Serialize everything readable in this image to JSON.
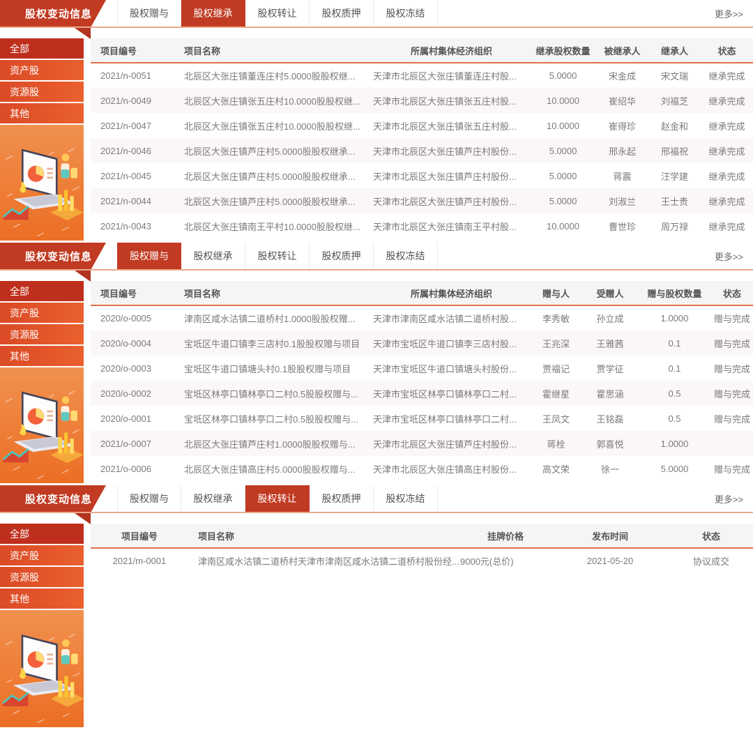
{
  "banner_title": "股权变动信息",
  "more_label": "更多>>",
  "tabs": [
    "股权赠与",
    "股权继承",
    "股权转让",
    "股权质押",
    "股权冻结"
  ],
  "sidebar_items": [
    "全部",
    "资产股",
    "资源股",
    "其他"
  ],
  "colors": {
    "banner_red": "#c13a22",
    "active_tab_red": "#c13a22",
    "sidebar_active_red": "#bf2f1d",
    "sidebar_item_orange": "#e2512a",
    "header_underline_orange": "#de7145",
    "bar_bottom_salmon": "#eaa98c",
    "illustration_gradient_top": "#f0914f",
    "illustration_gradient_bottom": "#ec6e24"
  },
  "sections": [
    {
      "active_tab": "股权继承",
      "columns": [
        "项目编号",
        "项目名称",
        "所属村集体经济组织",
        "继承股权数量",
        "被继承人",
        "继承人",
        "状态"
      ],
      "rows": [
        [
          "2021/n-0051",
          "北辰区大张庄镇董连庄村5.0000股股权继...",
          "天津市北辰区大张庄镇董连庄村股...",
          "5.0000",
          "宋金成",
          "宋文瑞",
          "继承完成"
        ],
        [
          "2021/n-0049",
          "北辰区大张庄镇张五庄村10.0000股股权继...",
          "天津市北辰区大张庄镇张五庄村股...",
          "10.0000",
          "崔绍华",
          "刘福芝",
          "继承完成"
        ],
        [
          "2021/n-0047",
          "北辰区大张庄镇张五庄村10.0000股股权继...",
          "天津市北辰区大张庄镇张五庄村股...",
          "10.0000",
          "崔得珍",
          "赵金和",
          "继承完成"
        ],
        [
          "2021/n-0046",
          "北辰区大张庄镇芦庄村5.0000股股权继承...",
          "天津市北辰区大张庄镇芦庄村股份...",
          "5.0000",
          "邢永起",
          "邢福祝",
          "继承完成"
        ],
        [
          "2021/n-0045",
          "北辰区大张庄镇芦庄村5.0000股股权继承...",
          "天津市北辰区大张庄镇芦庄村股份...",
          "5.0000",
          "蒋震",
          "汪学建",
          "继承完成"
        ],
        [
          "2021/n-0044",
          "北辰区大张庄镇芦庄村5.0000股股权继承...",
          "天津市北辰区大张庄镇芦庄村股份...",
          "5.0000",
          "刘淑兰",
          "王士贵",
          "继承完成"
        ],
        [
          "2021/n-0043",
          "北辰区大张庄镇南王平村10.0000股股权继...",
          "天津市北辰区大张庄镇南王平村股...",
          "10.0000",
          "曹世珍",
          "周万禄",
          "继承完成"
        ]
      ]
    },
    {
      "active_tab": "股权赠与",
      "columns": [
        "项目编号",
        "项目名称",
        "所属村集体经济组织",
        "赠与人",
        "受赠人",
        "赠与股权数量",
        "状态"
      ],
      "rows": [
        [
          "2020/o-0005",
          "津南区咸水沽镇二道桥村1.0000股股权赠...",
          "天津市津南区咸水沽镇二道桥村股...",
          "李秀敏",
          "孙立成",
          "1.0000",
          "赠与完成"
        ],
        [
          "2020/o-0004",
          "宝坻区牛道口镇李三店村0.1股股权赠与项目",
          "天津市宝坻区牛道口镇李三店村股...",
          "王兆深",
          "王雅茜",
          "0.1",
          "赠与完成"
        ],
        [
          "2020/o-0003",
          "宝坻区牛道口镇塘头村0.1股股权赠与项目",
          "天津市宝坻区牛道口镇塘头村股份...",
          "贾福记",
          "贾学征",
          "0.1",
          "赠与完成"
        ],
        [
          "2020/o-0002",
          "宝坻区林亭口镇林亭口二村0.5股股权赠与...",
          "天津市宝坻区林亭口镇林亭口二村...",
          "霍继星",
          "霍思涵",
          "0.5",
          "赠与完成"
        ],
        [
          "2020/o-0001",
          "宝坻区林亭口镇林亭口二村0.5股股权赠与...",
          "天津市宝坻区林亭口镇林亭口二村...",
          "王凤文",
          "王铭磊",
          "0.5",
          "赠与完成"
        ],
        [
          "2021/o-0007",
          "北辰区大张庄镇芦庄村1.0000股股权赠与...",
          "天津市北辰区大张庄镇芦庄村股份...",
          "蒋栓",
          "郭喜悦",
          "1.0000",
          ""
        ],
        [
          "2021/o-0006",
          "北辰区大张庄镇高庄村5.0000股股权赠与...",
          "天津市北辰区大张庄镇高庄村股份...",
          "高文荣",
          "徐一",
          "5.0000",
          "赠与完成"
        ]
      ]
    },
    {
      "active_tab": "股权转让",
      "columns": [
        "项目编号",
        "项目名称",
        "挂牌价格",
        "发布时间",
        "状态"
      ],
      "rows": [
        [
          "2021/m-0001",
          "津南区咸水沽镇二道桥村天津市津南区咸水沽镇二道桥村股份经...",
          "9000元(总价)",
          "2021-05-20",
          "协议成交"
        ]
      ]
    }
  ]
}
